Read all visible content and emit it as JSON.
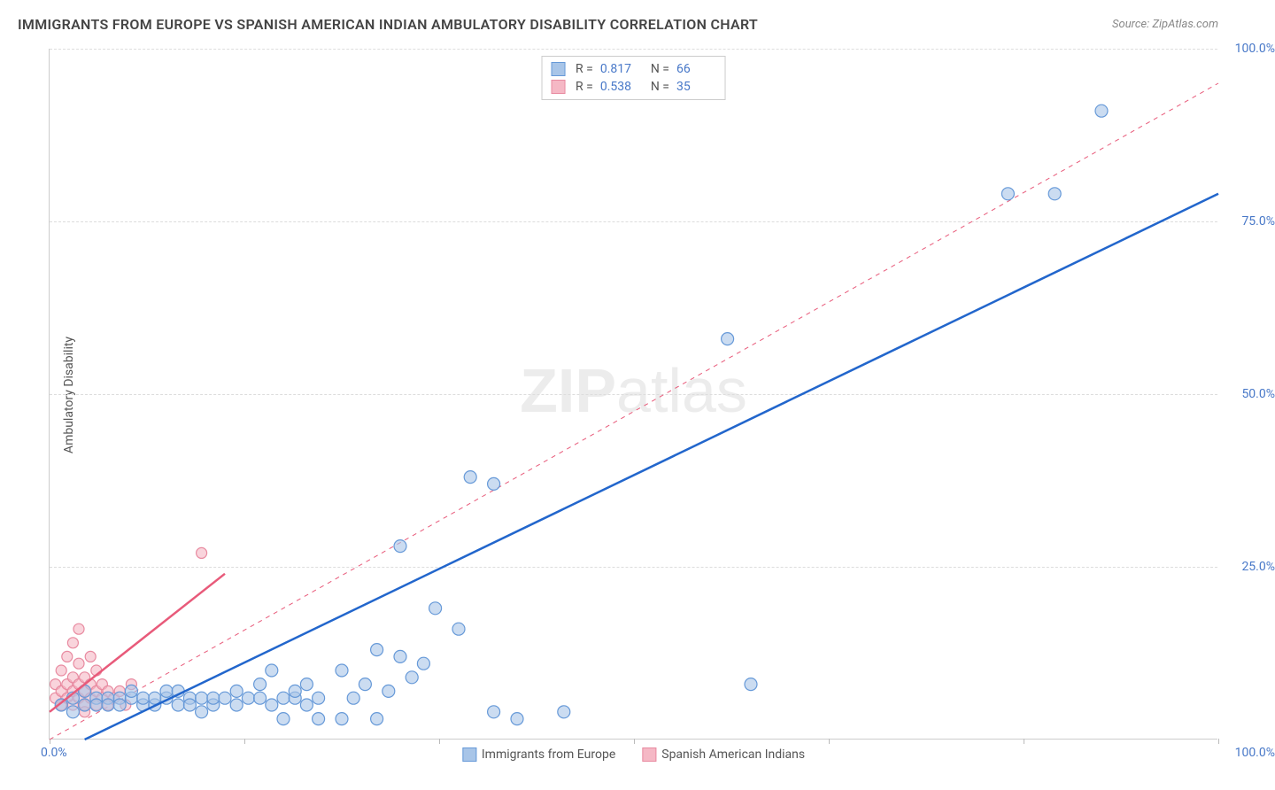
{
  "title": "IMMIGRANTS FROM EUROPE VS SPANISH AMERICAN INDIAN AMBULATORY DISABILITY CORRELATION CHART",
  "source_label": "Source:",
  "source_value": "ZipAtlas.com",
  "y_axis_label": "Ambulatory Disability",
  "watermark_bold": "ZIP",
  "watermark_light": "atlas",
  "chart": {
    "type": "scatter",
    "xlim": [
      0,
      100
    ],
    "ylim": [
      0,
      100
    ],
    "x_min_label": "0.0%",
    "x_max_label": "100.0%",
    "y_ticks": [
      25.0,
      50.0,
      75.0,
      100.0
    ],
    "y_tick_labels": [
      "25.0%",
      "50.0%",
      "75.0%",
      "100.0%"
    ],
    "x_ticks": [
      0,
      16.67,
      33.33,
      50,
      66.67,
      83.33,
      100
    ],
    "grid_color": "#dddddd",
    "axis_label_color": "#4878c8",
    "background_color": "#ffffff",
    "marker_radius_blue": 7,
    "marker_radius_pink": 6,
    "marker_stroke_width": 1.2,
    "line_width_solid": 2.5,
    "line_width_dashed": 1,
    "dash_pattern": "5,5"
  },
  "series": {
    "blue": {
      "name": "Immigrants from Europe",
      "color_fill": "#a8c5e8",
      "color_stroke": "#6699d8",
      "line_color": "#2266cc",
      "fill_opacity": 0.6,
      "R": "0.817",
      "N": "66",
      "trend_solid": {
        "x1": 3,
        "y1": 0,
        "x2": 100,
        "y2": 79
      },
      "trend_dashed": {
        "x1": 0,
        "y1": 0,
        "x2": 100,
        "y2": 95
      },
      "points": [
        [
          1,
          5
        ],
        [
          2,
          6
        ],
        [
          2,
          4
        ],
        [
          3,
          5
        ],
        [
          3,
          7
        ],
        [
          4,
          6
        ],
        [
          4,
          5
        ],
        [
          5,
          6
        ],
        [
          5,
          5
        ],
        [
          6,
          6
        ],
        [
          6,
          5
        ],
        [
          7,
          6
        ],
        [
          7,
          7
        ],
        [
          8,
          5
        ],
        [
          8,
          6
        ],
        [
          9,
          5
        ],
        [
          9,
          6
        ],
        [
          10,
          6
        ],
        [
          10,
          7
        ],
        [
          11,
          5
        ],
        [
          12,
          6
        ],
        [
          12,
          5
        ],
        [
          13,
          6
        ],
        [
          14,
          5
        ],
        [
          14,
          6
        ],
        [
          15,
          6
        ],
        [
          16,
          5
        ],
        [
          17,
          6
        ],
        [
          18,
          6
        ],
        [
          18,
          8
        ],
        [
          19,
          10
        ],
        [
          20,
          3
        ],
        [
          20,
          6
        ],
        [
          21,
          6
        ],
        [
          22,
          5
        ],
        [
          22,
          8
        ],
        [
          23,
          3
        ],
        [
          23,
          6
        ],
        [
          25,
          3
        ],
        [
          25,
          10
        ],
        [
          26,
          6
        ],
        [
          27,
          8
        ],
        [
          28,
          3
        ],
        [
          28,
          13
        ],
        [
          29,
          7
        ],
        [
          30,
          28
        ],
        [
          30,
          12
        ],
        [
          31,
          9
        ],
        [
          32,
          11
        ],
        [
          33,
          19
        ],
        [
          35,
          16
        ],
        [
          36,
          38
        ],
        [
          38,
          37
        ],
        [
          38,
          4
        ],
        [
          40,
          3
        ],
        [
          44,
          4
        ],
        [
          58,
          58
        ],
        [
          60,
          8
        ],
        [
          82,
          79
        ],
        [
          86,
          79
        ],
        [
          90,
          91
        ],
        [
          19,
          5
        ],
        [
          21,
          7
        ],
        [
          16,
          7
        ],
        [
          13,
          4
        ],
        [
          11,
          7
        ]
      ]
    },
    "pink": {
      "name": "Spanish American Indians",
      "color_fill": "#f5b8c5",
      "color_stroke": "#e88aa0",
      "line_color": "#e85a7a",
      "fill_opacity": 0.6,
      "R": "0.538",
      "N": "35",
      "trend_solid": {
        "x1": 0,
        "y1": 4,
        "x2": 15,
        "y2": 24
      },
      "points": [
        [
          0.5,
          6
        ],
        [
          0.5,
          8
        ],
        [
          1,
          5
        ],
        [
          1,
          7
        ],
        [
          1,
          10
        ],
        [
          1.5,
          6
        ],
        [
          1.5,
          8
        ],
        [
          1.5,
          12
        ],
        [
          2,
          5
        ],
        [
          2,
          7
        ],
        [
          2,
          9
        ],
        [
          2,
          14
        ],
        [
          2.5,
          6
        ],
        [
          2.5,
          8
        ],
        [
          2.5,
          11
        ],
        [
          2.5,
          16
        ],
        [
          3,
          5
        ],
        [
          3,
          7
        ],
        [
          3,
          9
        ],
        [
          3,
          4
        ],
        [
          3.5,
          6
        ],
        [
          3.5,
          8
        ],
        [
          3.5,
          12
        ],
        [
          4,
          5
        ],
        [
          4,
          7
        ],
        [
          4,
          10
        ],
        [
          4.5,
          6
        ],
        [
          4.5,
          8
        ],
        [
          5,
          5
        ],
        [
          5,
          7
        ],
        [
          5.5,
          6
        ],
        [
          6,
          7
        ],
        [
          6.5,
          5
        ],
        [
          7,
          8
        ],
        [
          13,
          27
        ]
      ]
    }
  },
  "legend": {
    "series1": "Immigrants from Europe",
    "series2": "Spanish American Indians"
  }
}
